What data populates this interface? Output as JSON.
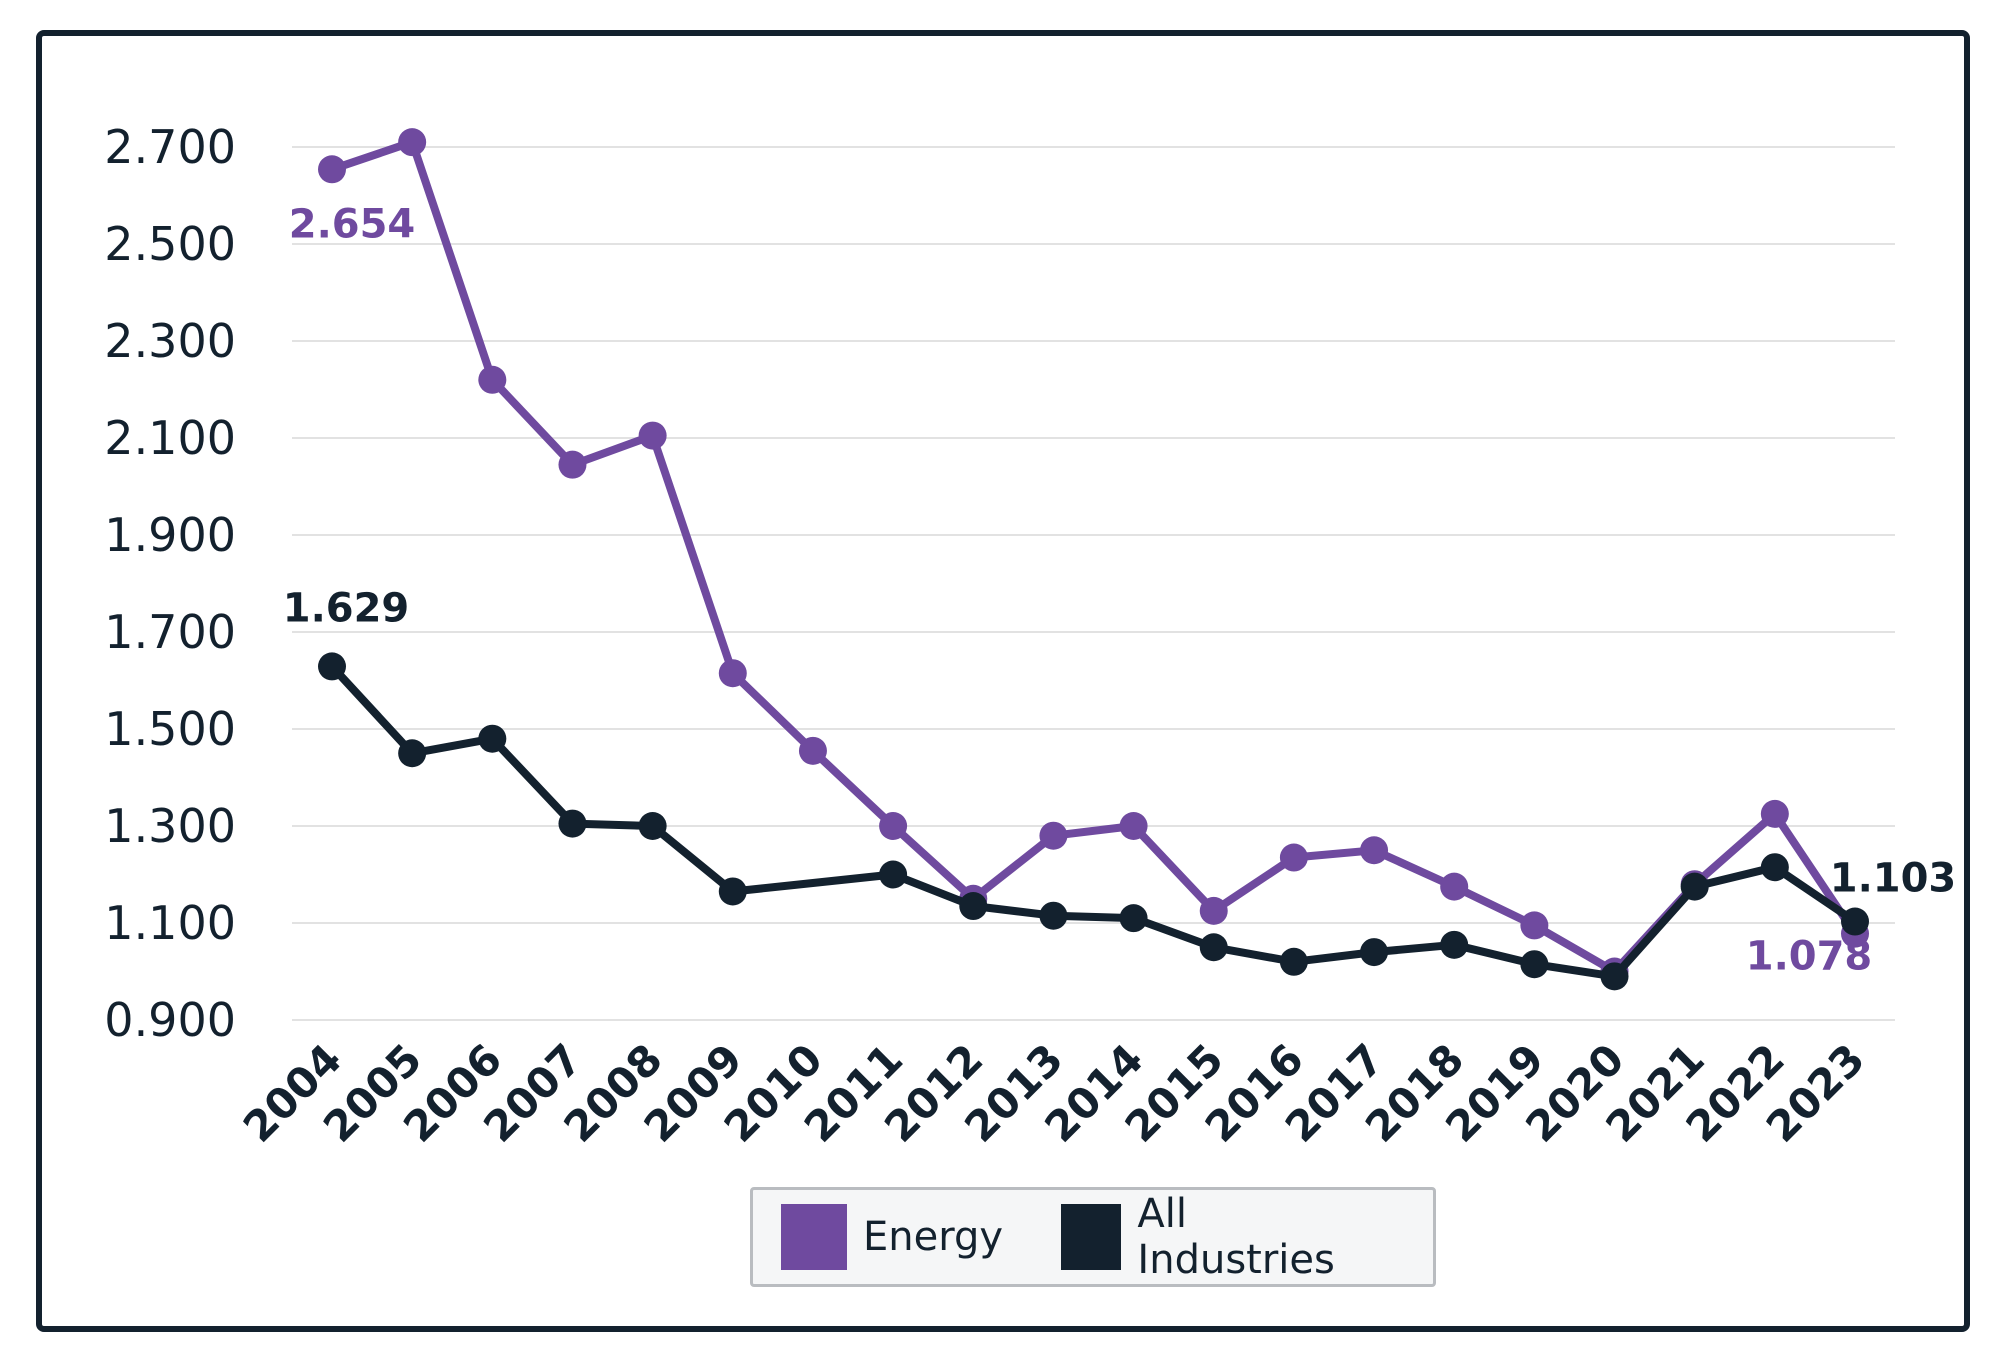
{
  "chart_data": {
    "type": "line",
    "categories": [
      "2004",
      "2005",
      "2006",
      "2007",
      "2008",
      "2009",
      "2010",
      "2011",
      "2012",
      "2013",
      "2014",
      "2015",
      "2016",
      "2017",
      "2018",
      "2019",
      "2020",
      "2021",
      "2022",
      "2023"
    ],
    "y_ticks": [
      "0.900",
      "1.100",
      "1.300",
      "1.500",
      "1.700",
      "1.900",
      "2.100",
      "2.300",
      "2.500",
      "2.700"
    ],
    "ylim": [
      0.9,
      2.7
    ],
    "grid": true,
    "legend_position": "bottom-center",
    "series": [
      {
        "name": "Energy",
        "color": "#6f4a9f",
        "values": [
          2.654,
          2.71,
          2.22,
          2.045,
          2.105,
          1.615,
          1.455,
          1.3,
          1.15,
          1.28,
          1.3,
          1.125,
          1.235,
          1.25,
          1.175,
          1.095,
          1.0,
          1.18,
          1.325,
          1.078
        ]
      },
      {
        "name": "All Industries",
        "color": "#13212e",
        "values": [
          1.629,
          1.45,
          1.48,
          1.305,
          1.3,
          1.165,
          null,
          1.2,
          1.135,
          1.115,
          1.11,
          1.05,
          1.02,
          1.04,
          1.055,
          1.015,
          0.99,
          1.175,
          1.215,
          1.103
        ]
      }
    ],
    "annotations": [
      {
        "series": 0,
        "index": 0,
        "text": "2.654"
      },
      {
        "series": 1,
        "index": 0,
        "text": "1.629"
      },
      {
        "series": 1,
        "index": 19,
        "text": "1.103"
      },
      {
        "series": 0,
        "index": 19,
        "text": "1.078"
      }
    ]
  },
  "legend": {
    "items": [
      {
        "label": "Energy",
        "color": "#6f4a9f"
      },
      {
        "label": "All Industries",
        "color": "#13212e"
      }
    ]
  }
}
